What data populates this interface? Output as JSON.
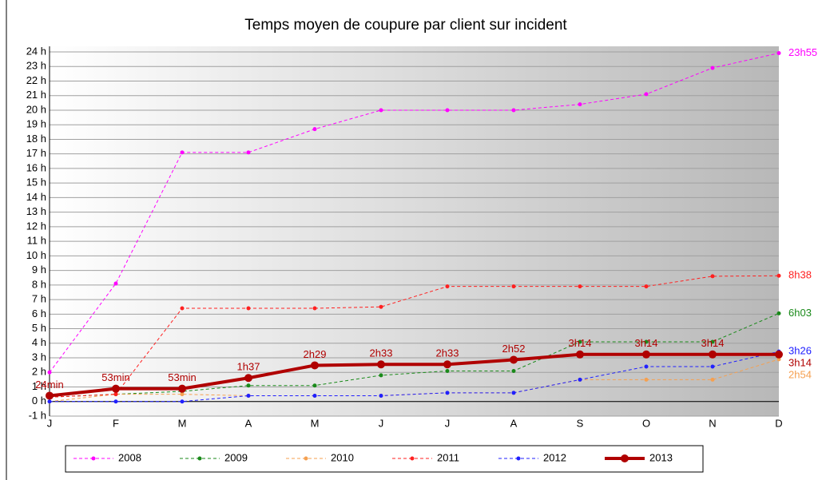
{
  "chart_data": {
    "type": "line",
    "title": "Temps moyen de coupure par client sur incident",
    "categories": [
      "J",
      "F",
      "M",
      "A",
      "M",
      "J",
      "J",
      "A",
      "S",
      "O",
      "N",
      "D"
    ],
    "ylim": [
      -1,
      24
    ],
    "yticks": [
      {
        "value": -1,
        "label": "-1 h"
      },
      {
        "value": 0,
        "label": "0 h"
      },
      {
        "value": 1,
        "label": "1 h"
      },
      {
        "value": 2,
        "label": "2 h"
      },
      {
        "value": 3,
        "label": "3 h"
      },
      {
        "value": 4,
        "label": "4 h"
      },
      {
        "value": 5,
        "label": "5 h"
      },
      {
        "value": 6,
        "label": "6 h"
      },
      {
        "value": 7,
        "label": "7 h"
      },
      {
        "value": 8,
        "label": "8 h"
      },
      {
        "value": 9,
        "label": "9 h"
      },
      {
        "value": 10,
        "label": "10 h"
      },
      {
        "value": 11,
        "label": "11 h"
      },
      {
        "value": 12,
        "label": "12 h"
      },
      {
        "value": 13,
        "label": "13 h"
      },
      {
        "value": 14,
        "label": "14 h"
      },
      {
        "value": 15,
        "label": "15 h"
      },
      {
        "value": 16,
        "label": "16 h"
      },
      {
        "value": 17,
        "label": "17 h"
      },
      {
        "value": 18,
        "label": "18 h"
      },
      {
        "value": 19,
        "label": "19 h"
      },
      {
        "value": 20,
        "label": "20 h"
      },
      {
        "value": 21,
        "label": "21 h"
      },
      {
        "value": 22,
        "label": "22 h"
      },
      {
        "value": 23,
        "label": "23 h"
      },
      {
        "value": 24,
        "label": "24 h"
      }
    ],
    "grid": true,
    "legend": "bottom",
    "series": [
      {
        "name": "2008",
        "color": "#ff00ff",
        "dashed": true,
        "line_width": 1,
        "values": [
          2,
          8.1,
          17.1,
          17.1,
          18.7,
          20,
          20,
          20,
          20.4,
          21.1,
          22.9,
          23.917
        ],
        "value_labels": [
          null,
          null,
          null,
          null,
          null,
          null,
          null,
          null,
          null,
          null,
          null,
          "23h55"
        ]
      },
      {
        "name": "2009",
        "color": "#1a8a1a",
        "dashed": true,
        "line_width": 1,
        "values": [
          0.3,
          0.5,
          0.7,
          1.1,
          1.1,
          1.8,
          2.1,
          2.1,
          4.1,
          4.1,
          4.1,
          6.05
        ],
        "value_labels": [
          null,
          null,
          null,
          null,
          null,
          null,
          null,
          null,
          null,
          null,
          null,
          "6h03"
        ]
      },
      {
        "name": "2010",
        "color": "#f5a050",
        "dashed": true,
        "line_width": 1,
        "values": [
          0,
          0.5,
          0.5,
          0.4,
          0.4,
          0.4,
          0.6,
          0.6,
          1.5,
          1.5,
          1.5,
          2.9
        ],
        "value_labels": [
          null,
          null,
          null,
          null,
          null,
          null,
          null,
          null,
          null,
          null,
          null,
          "2h54"
        ]
      },
      {
        "name": "2011",
        "color": "#ff2020",
        "dashed": true,
        "line_width": 1,
        "values": [
          0.3,
          0.5,
          6.4,
          6.4,
          6.4,
          6.5,
          7.9,
          7.9,
          7.9,
          7.9,
          8.6,
          8.633
        ],
        "value_labels": [
          null,
          null,
          null,
          null,
          null,
          null,
          null,
          null,
          null,
          null,
          null,
          "8h38"
        ]
      },
      {
        "name": "2012",
        "color": "#2020ff",
        "dashed": true,
        "line_width": 1,
        "values": [
          0,
          0,
          0,
          0.4,
          0.4,
          0.4,
          0.6,
          0.6,
          1.5,
          2.4,
          2.4,
          3.433
        ],
        "value_labels": [
          null,
          null,
          null,
          null,
          null,
          null,
          null,
          null,
          null,
          null,
          null,
          "3h26"
        ]
      },
      {
        "name": "2013",
        "color": "#b00000",
        "dashed": false,
        "line_width": 4,
        "values": [
          0.4,
          0.883,
          0.883,
          1.617,
          2.483,
          2.55,
          2.55,
          2.867,
          3.233,
          3.233,
          3.233,
          3.233
        ],
        "value_labels": [
          "24min",
          "53min",
          "53min",
          "1h37",
          "2h29",
          "2h33",
          "2h33",
          "2h52",
          "3h14",
          "3h14",
          "3h14",
          "3h14"
        ]
      }
    ]
  }
}
